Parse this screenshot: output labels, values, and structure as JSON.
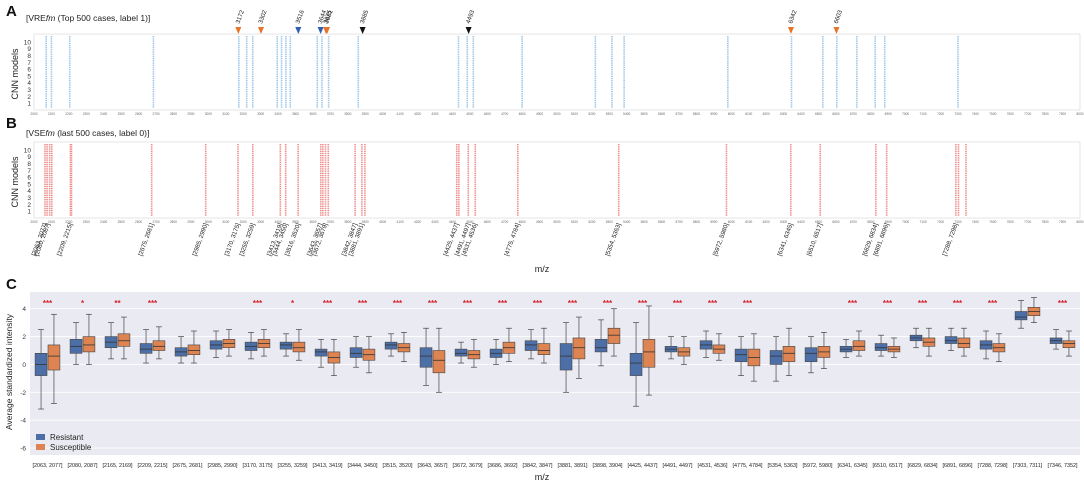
{
  "chart_data": [
    {
      "panel": "A",
      "type": "scatter",
      "title": "[VRE",
      "title_italic": "fm",
      "title_rest": " (Top 500 cases, label 1)]",
      "ylabel": "CNN models",
      "y_ticks": [
        1,
        2,
        3,
        4,
        5,
        6,
        7,
        8,
        9,
        10
      ],
      "xlim": [
        2000,
        8000
      ],
      "color": "#9fc6e6",
      "highlight_positions": [
        2070,
        2100,
        2205,
        2685,
        3175,
        3220,
        3255,
        3395,
        3420,
        3445,
        3470,
        3625,
        3652,
        3690,
        3860,
        4435,
        4485,
        4520,
        4800,
        5220,
        5315,
        5385,
        5980,
        6345,
        6525,
        6605,
        6720,
        6825,
        6880,
        7300
      ],
      "markers": [
        {
          "label": "3172",
          "x": 3172,
          "color": "#e8732a"
        },
        {
          "label": "3302",
          "x": 3302,
          "color": "#e8732a"
        },
        {
          "label": "3516",
          "x": 3516,
          "color": "#2f5fb3"
        },
        {
          "label": "3644",
          "x": 3644,
          "color": "#2f5fb3"
        },
        {
          "label": "3675",
          "x": 3675,
          "color": "#e8732a"
        },
        {
          "label": "3681",
          "x": 3681,
          "color": "#e8732a"
        },
        {
          "label": "3885",
          "x": 3885,
          "color": "#111111"
        },
        {
          "label": "4493",
          "x": 4493,
          "color": "#111111"
        },
        {
          "label": "6342",
          "x": 6342,
          "color": "#e8732a"
        },
        {
          "label": "6603",
          "x": 6603,
          "color": "#e8732a"
        }
      ]
    },
    {
      "panel": "B",
      "type": "scatter",
      "title": "[VSE",
      "title_italic": "fm",
      "title_rest": " (last 500 cases, label 0)]",
      "ylabel": "CNN models",
      "xlabel": "m/z",
      "y_ticks": [
        1,
        2,
        3,
        4,
        5,
        6,
        7,
        8,
        9,
        10
      ],
      "xlim": [
        2000,
        8000
      ],
      "color": "#f08c8c",
      "highlight_positions": [
        2063,
        2075,
        2090,
        2102,
        2209,
        2215,
        2675,
        2985,
        3170,
        3255,
        3413,
        3444,
        3515,
        3645,
        3657,
        3672,
        3688,
        3842,
        3881,
        3898,
        4425,
        4437,
        4491,
        4531,
        4775,
        5354,
        5972,
        6341,
        6510,
        6829,
        6891,
        7288,
        7303,
        7346
      ],
      "range_labels": [
        "[2063, 2077]",
        "[2080, 2087]",
        "[2209, 2215]",
        "[2675, 2681]",
        "[2985, 2990]",
        "[3170, 3175]",
        "[3255, 3259]",
        "[3413, 3419]",
        "[3444, 3450]",
        "[3516, 3520]",
        "[3643, 3657]",
        "[3672, 3679]",
        "[3842, 3847]",
        "[3881, 3891]",
        "[4425, 4437]",
        "[4491, 4497]",
        "[4531, 4536]",
        "[4775, 4784]",
        "[5354, 5363]",
        "[5972, 5980]",
        "[6341, 6345]",
        "[6510, 6517]",
        "[6829, 6834]",
        "[6891, 6896]",
        "[7288, 7298]"
      ],
      "range_label_x": [
        2063,
        2080,
        2209,
        2675,
        2985,
        3170,
        3255,
        3413,
        3444,
        3516,
        3643,
        3672,
        3842,
        3881,
        4425,
        4491,
        4531,
        4775,
        5354,
        5972,
        6341,
        6510,
        6829,
        6891,
        7288
      ]
    },
    {
      "panel": "C",
      "type": "box",
      "ylabel": "Average standardized intensity",
      "xlabel": "m/z",
      "ylim": [
        -6.5,
        5.2
      ],
      "y_ticks": [
        -6,
        -4,
        -2,
        0,
        2,
        4
      ],
      "legend": [
        {
          "name": "Resistant",
          "color": "#4c6fa8"
        },
        {
          "name": "Susceptible",
          "color": "#dd8452"
        }
      ],
      "categories": [
        "[2063, 2077]",
        "[2080, 2087]",
        "[2165, 2169]",
        "[2209, 2215]",
        "[2675, 2681]",
        "[2985, 2990]",
        "[3170, 3175]",
        "[3255, 3259]",
        "[3413, 3419]",
        "[3444, 3450]",
        "[3515, 3520]",
        "[3643, 3657]",
        "[3672, 3679]",
        "[3686, 3692]",
        "[3842, 3847]",
        "[3881, 3891]",
        "[3898, 3904]",
        "[4425, 4437]",
        "[4491, 4497]",
        "[4531, 4536]",
        "[4775, 4784]",
        "[5354, 5363]",
        "[5972, 5980]",
        "[6341, 6345]",
        "[6510, 6517]",
        "[6829, 6834]",
        "[6891, 6896]",
        "[7288, 7298]",
        "[7303, 7311]",
        "[7346, 7352]"
      ],
      "significance": [
        "***",
        "*",
        "**",
        "***",
        "",
        "",
        "***",
        "*",
        "***",
        "***",
        "***",
        "***",
        "***",
        "***",
        "***",
        "***",
        "***",
        "***",
        "***",
        "***",
        "***",
        "",
        "",
        "***",
        "***",
        "***",
        "***",
        "***",
        "",
        "***"
      ],
      "series": [
        {
          "name": "Resistant",
          "boxes": [
            [
              -3.2,
              -0.8,
              0.0,
              0.8,
              2.5
            ],
            [
              0.0,
              0.8,
              1.3,
              1.8,
              3.0
            ],
            [
              0.4,
              1.2,
              1.6,
              2.0,
              3.0
            ],
            [
              0.1,
              0.8,
              1.1,
              1.5,
              2.5
            ],
            [
              0.1,
              0.6,
              0.9,
              1.2,
              2.0
            ],
            [
              0.5,
              1.1,
              1.4,
              1.7,
              2.4
            ],
            [
              0.4,
              1.0,
              1.3,
              1.6,
              2.3
            ],
            [
              0.6,
              1.1,
              1.4,
              1.6,
              2.2
            ],
            [
              -0.2,
              0.6,
              0.9,
              1.1,
              1.8
            ],
            [
              -0.2,
              0.5,
              0.8,
              1.2,
              2.0
            ],
            [
              0.6,
              1.1,
              1.4,
              1.6,
              2.2
            ],
            [
              -1.5,
              -0.2,
              0.6,
              1.2,
              2.6
            ],
            [
              0.1,
              0.6,
              0.8,
              1.1,
              1.6
            ],
            [
              0.0,
              0.5,
              0.8,
              1.1,
              1.8
            ],
            [
              0.4,
              1.0,
              1.4,
              1.7,
              2.5
            ],
            [
              -2.0,
              -0.4,
              0.6,
              1.5,
              3.0
            ],
            [
              -0.1,
              0.9,
              1.2,
              1.8,
              3.2
            ],
            [
              -3.0,
              -0.8,
              0.1,
              0.8,
              3.0
            ],
            [
              0.4,
              0.9,
              1.1,
              1.3,
              2.0
            ],
            [
              0.5,
              1.1,
              1.4,
              1.7,
              2.4
            ],
            [
              -0.8,
              0.2,
              0.7,
              1.1,
              2.0
            ],
            [
              -1.2,
              0.0,
              0.6,
              1.0,
              2.0
            ],
            [
              -0.6,
              0.2,
              0.8,
              1.2,
              2.0
            ],
            [
              0.5,
              0.9,
              1.1,
              1.3,
              1.8
            ],
            [
              0.6,
              1.0,
              1.2,
              1.5,
              2.1
            ],
            [
              1.2,
              1.7,
              1.9,
              2.1,
              2.6
            ],
            [
              1.0,
              1.5,
              1.7,
              2.0,
              2.6
            ],
            [
              0.4,
              1.1,
              1.4,
              1.7,
              2.4
            ],
            [
              2.6,
              3.2,
              3.4,
              3.8,
              4.6
            ],
            [
              1.1,
              1.5,
              1.7,
              1.9,
              2.5
            ]
          ]
        },
        {
          "name": "Susceptible",
          "boxes": [
            [
              -2.8,
              -0.4,
              0.6,
              1.4,
              3.6
            ],
            [
              0.0,
              0.9,
              1.4,
              2.0,
              3.6
            ],
            [
              0.4,
              1.3,
              1.7,
              2.2,
              3.4
            ],
            [
              0.4,
              1.0,
              1.3,
              1.7,
              2.7
            ],
            [
              0.1,
              0.7,
              1.0,
              1.4,
              2.4
            ],
            [
              0.6,
              1.2,
              1.5,
              1.8,
              2.5
            ],
            [
              0.6,
              1.2,
              1.5,
              1.8,
              2.5
            ],
            [
              0.3,
              0.9,
              1.2,
              1.6,
              2.5
            ],
            [
              -0.8,
              0.1,
              0.5,
              0.9,
              1.8
            ],
            [
              -0.6,
              0.3,
              0.7,
              1.1,
              2.0
            ],
            [
              0.2,
              0.9,
              1.2,
              1.5,
              2.3
            ],
            [
              -2.0,
              -0.6,
              0.3,
              1.0,
              2.6
            ],
            [
              -0.2,
              0.4,
              0.7,
              1.0,
              1.8
            ],
            [
              0.2,
              0.8,
              1.2,
              1.6,
              2.6
            ],
            [
              0.1,
              0.7,
              1.0,
              1.5,
              2.6
            ],
            [
              -1.0,
              0.4,
              1.2,
              1.9,
              3.4
            ],
            [
              0.6,
              1.5,
              2.1,
              2.6,
              4.0
            ],
            [
              -2.2,
              -0.2,
              0.9,
              1.8,
              4.2
            ],
            [
              0.0,
              0.6,
              0.9,
              1.2,
              2.0
            ],
            [
              0.3,
              0.8,
              1.1,
              1.4,
              2.2
            ],
            [
              -1.2,
              -0.1,
              0.5,
              1.1,
              2.2
            ],
            [
              -0.8,
              0.2,
              0.8,
              1.3,
              2.6
            ],
            [
              -0.3,
              0.5,
              0.9,
              1.3,
              2.3
            ],
            [
              0.6,
              1.0,
              1.3,
              1.7,
              2.4
            ],
            [
              0.5,
              0.9,
              1.1,
              1.3,
              1.9
            ],
            [
              0.6,
              1.3,
              1.6,
              1.9,
              2.6
            ],
            [
              0.6,
              1.2,
              1.5,
              1.9,
              2.6
            ],
            [
              0.2,
              0.9,
              1.2,
              1.5,
              2.2
            ],
            [
              3.0,
              3.5,
              3.8,
              4.1,
              4.8
            ],
            [
              0.6,
              1.2,
              1.5,
              1.7,
              2.4
            ]
          ]
        }
      ]
    }
  ]
}
